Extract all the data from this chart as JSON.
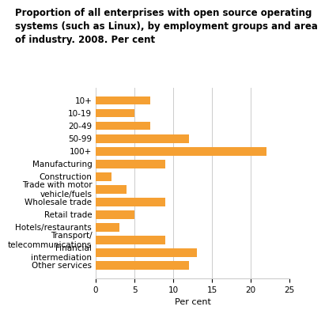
{
  "title": "Proportion of all enterprises with open source operating\nsystems (such as Linux), by employment groups and area\nof industry. 2008. Per cent",
  "categories": [
    "Other services",
    "Financial\nintermediation",
    "Transport/\ntelecommunications",
    "Hotels/restaurants",
    "Retail trade",
    "Wholesale trade",
    "Trade with motor\nvehicle/fuels",
    "Construction",
    "Manufacturing",
    "100+",
    "50-99",
    "20-49",
    "10-19",
    "10+"
  ],
  "values": [
    12,
    13,
    9,
    3,
    5,
    9,
    4,
    2,
    9,
    22,
    12,
    7,
    5,
    7
  ],
  "bar_color": "#F5A033",
  "xlabel": "Per cent",
  "xlim": [
    0,
    25
  ],
  "xticks": [
    0,
    5,
    10,
    15,
    20,
    25
  ],
  "background_color": "#ffffff",
  "grid_color": "#cccccc",
  "title_fontsize": 8.5,
  "tick_fontsize": 7.5,
  "xlabel_fontsize": 8
}
